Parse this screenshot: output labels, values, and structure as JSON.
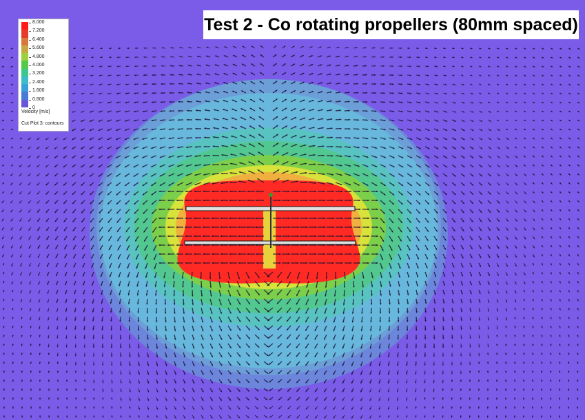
{
  "title": "Test 2 - Co rotating propellers (80mm spaced)",
  "legend": {
    "ticks": [
      "8.000",
      "7.200",
      "6.400",
      "5.600",
      "4.800",
      "4.000",
      "3.200",
      "2.400",
      "1.600",
      "0.800",
      "0"
    ],
    "swatch_colors": [
      "#ff1a1a",
      "#e83a2a",
      "#d8783a",
      "#c8a840",
      "#9ecf3c",
      "#56c94a",
      "#3cc88c",
      "#3cbcc8",
      "#3aa0d8",
      "#4a7ad8",
      "#6a56d8"
    ],
    "units_label": "Velocity [m/s]",
    "caption": "Cut Plot 3: contours"
  },
  "colors": {
    "background": "#7a5ce8",
    "arrow": "#1a1030"
  }
}
